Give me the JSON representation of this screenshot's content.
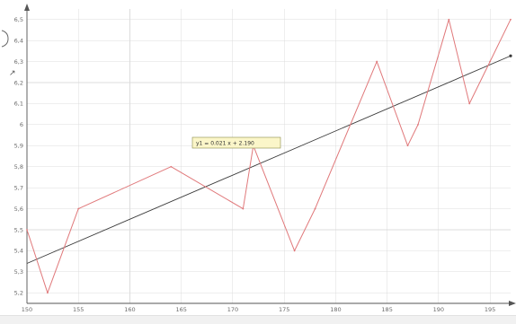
{
  "chart_data": {
    "type": "line",
    "title": "",
    "xlabel": "",
    "ylabel": "",
    "xlim": [
      150,
      197
    ],
    "ylim": [
      5.15,
      6.55
    ],
    "grid": true,
    "x_ticks": [
      {
        "value": 150,
        "label": "150"
      },
      {
        "value": 155,
        "label": "155"
      },
      {
        "value": 160,
        "label": "160"
      },
      {
        "value": 165,
        "label": "165"
      },
      {
        "value": 170,
        "label": "170"
      },
      {
        "value": 175,
        "label": "175"
      },
      {
        "value": 180,
        "label": "180"
      },
      {
        "value": 185,
        "label": "185"
      },
      {
        "value": 190,
        "label": "190"
      },
      {
        "value": 195,
        "label": "195"
      }
    ],
    "y_ticks": [
      {
        "value": 5.2,
        "label": "5,2"
      },
      {
        "value": 5.3,
        "label": "5,3"
      },
      {
        "value": 5.4,
        "label": "5,4"
      },
      {
        "value": 5.5,
        "label": "5,5"
      },
      {
        "value": 5.6,
        "label": "5,6"
      },
      {
        "value": 5.7,
        "label": "5,7"
      },
      {
        "value": 5.8,
        "label": "5,8"
      },
      {
        "value": 5.9,
        "label": "5,9"
      },
      {
        "value": 6.0,
        "label": "6"
      },
      {
        "value": 6.1,
        "label": "6,1"
      },
      {
        "value": 6.2,
        "label": "6,2"
      },
      {
        "value": 6.3,
        "label": "6,3"
      },
      {
        "value": 6.4,
        "label": "6,4"
      },
      {
        "value": 6.5,
        "label": "6,5"
      }
    ],
    "series": [
      {
        "color": "#e0787a",
        "x": [
          150,
          152,
          155,
          164,
          171,
          172,
          176,
          178,
          184,
          187,
          188,
          191,
          193,
          195,
          197
        ],
        "y": [
          5.5,
          5.2,
          5.6,
          5.8,
          5.6,
          5.9,
          5.4,
          5.6,
          6.3,
          5.9,
          6.0,
          6.5,
          6.1,
          6.3,
          6.5
        ]
      }
    ],
    "trendline": {
      "color": "#3a3a3a",
      "slope": 0.021,
      "intercept": 2.19,
      "x_range": [
        150,
        197
      ],
      "label": "y1 = 0.021 x + 2.190"
    }
  }
}
